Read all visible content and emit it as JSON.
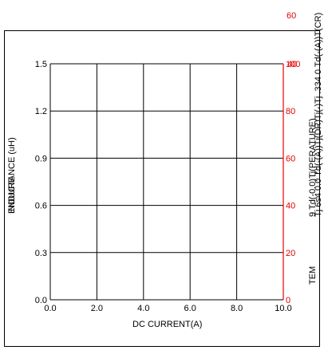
{
  "chart_data": {
    "type": "line",
    "xlabel": "DC CURRENT(A)",
    "ylabel_left": "INDUCTANCE (uH)",
    "ylabel_left_overlap": "ENDURE",
    "ylabel_right": "TEM",
    "ylabel_right_garbled": "9 Td(-0.0)Tj(PERATURE)",
    "right_edge_text": "Tj 6s4 0.0 Td(-(A))Tj(DR)Tj(-)Tj .334 0 Td(-(A))T(CR)",
    "x_ticks": [
      "0.0",
      "2.0",
      "4.0",
      "6.0",
      "8.0",
      "10.0"
    ],
    "xlim": [
      0,
      10
    ],
    "y_left_ticks": [
      "0.0",
      "0.3",
      "0.6",
      "0.9",
      "1.2",
      "1.5"
    ],
    "ylim_left": [
      0,
      1.5
    ],
    "y_right_ticks": [
      "0",
      "20",
      "40",
      "60",
      "80",
      "100"
    ],
    "y_right_extra_tick": "60",
    "y_right_overlap_label": "40",
    "ylim_right": [
      0,
      100
    ],
    "grid": true,
    "series": [],
    "colors": {
      "axis": "#000000",
      "right_axis": "#e60000"
    }
  }
}
